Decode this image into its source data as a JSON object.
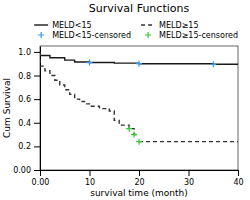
{
  "chart_data": {
    "type": "line",
    "title": "Survival Functions",
    "x_label": "survival time (month)",
    "y_label": "Cum Survival",
    "xlim": [
      0,
      40
    ],
    "ylim": [
      0,
      1.05
    ],
    "xticks": [
      {
        "value": 0,
        "label": "0.00"
      },
      10,
      20,
      30,
      40
    ],
    "yticks": [
      {
        "value": 0.0,
        "label": "0.00"
      },
      0.2,
      0.4,
      0.6,
      0.8,
      {
        "value": 1.0,
        "label": "1.0"
      }
    ],
    "grid": false,
    "legend": "upper right",
    "series": [
      {
        "name": "MELD<15",
        "type": "step",
        "color": "#1a1a1a",
        "line_style": "solid",
        "x": [
          0,
          0,
          2,
          2,
          5,
          5,
          7,
          7,
          10,
          10,
          15,
          15,
          20,
          20,
          35,
          35,
          40
        ],
        "values": [
          1.0,
          0.97,
          0.97,
          0.95,
          0.95,
          0.93,
          0.93,
          0.915,
          0.915,
          0.91,
          0.91,
          0.905,
          0.905,
          0.9,
          0.9,
          0.895,
          0.895
        ]
      },
      {
        "name": "MELD≥15",
        "type": "step",
        "color": "#333333",
        "line_style": "dashed",
        "x": [
          0,
          0,
          1,
          1,
          2,
          2,
          3,
          3,
          4,
          4,
          5,
          5,
          6,
          6,
          7,
          7,
          8,
          8,
          9,
          9,
          10,
          10,
          12,
          12,
          14,
          14,
          15,
          15,
          16,
          16,
          18,
          18,
          19,
          19,
          20
        ],
        "values": [
          1.0,
          0.88,
          0.88,
          0.84,
          0.84,
          0.8,
          0.8,
          0.76,
          0.76,
          0.72,
          0.72,
          0.68,
          0.68,
          0.64,
          0.64,
          0.6,
          0.6,
          0.58,
          0.58,
          0.56,
          0.56,
          0.54,
          0.54,
          0.52,
          0.52,
          0.5,
          0.5,
          0.42,
          0.42,
          0.38,
          0.38,
          0.35,
          0.35,
          0.3,
          0.3
        ]
      },
      {
        "type": "line",
        "color": "#333333",
        "line_style": "dashed",
        "x": [
          20,
          40
        ],
        "values": [
          0.24,
          0.24
        ]
      },
      {
        "name": "MELD<15-censored",
        "type": "scatter",
        "marker": "plus",
        "color": "#3399ff",
        "x": [
          10,
          20,
          35
        ],
        "values": [
          0.91,
          0.9,
          0.895
        ]
      },
      {
        "name": "MELD≥15-censored",
        "type": "scatter",
        "marker": "plus",
        "color": "#33cc33",
        "x": [
          18,
          19,
          20
        ],
        "values": [
          0.35,
          0.3,
          0.24
        ]
      }
    ]
  }
}
